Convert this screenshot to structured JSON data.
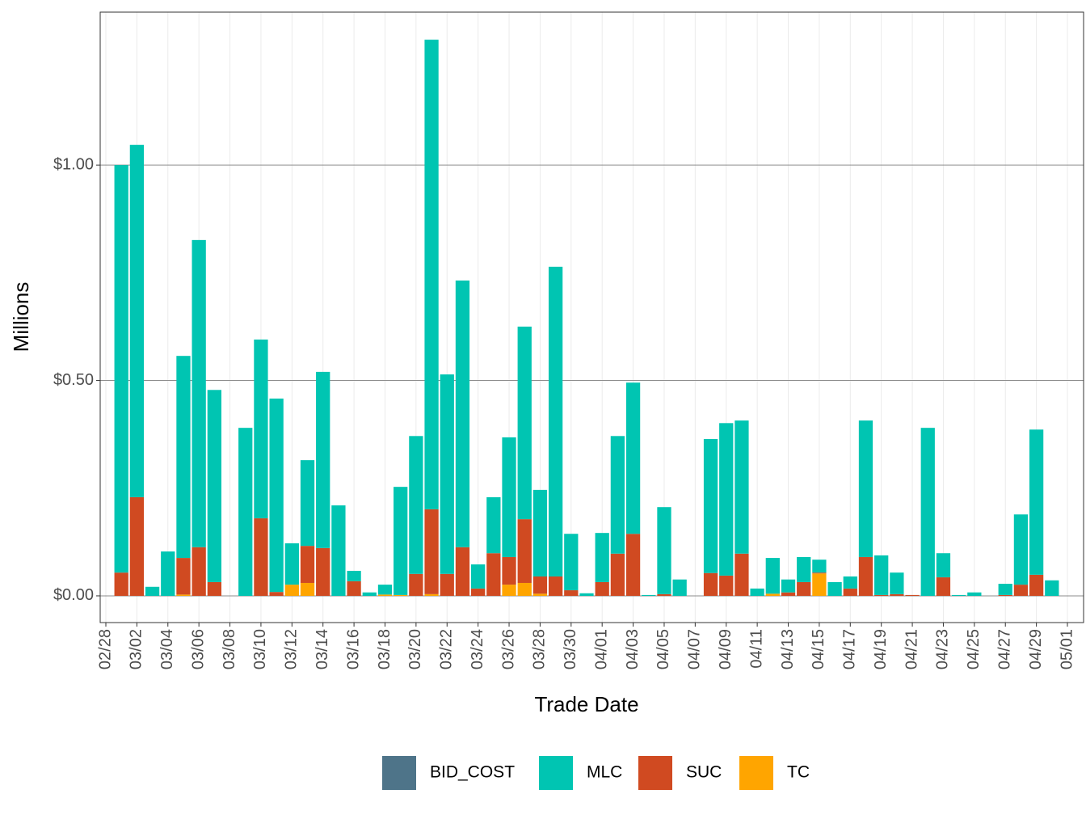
{
  "chart_data": {
    "type": "bar",
    "stacked": true,
    "x_label": "Trade Date",
    "y_label": "Millions",
    "x": [
      "03/01",
      "03/02",
      "03/03",
      "03/04",
      "03/05",
      "03/06",
      "03/07",
      "03/08",
      "03/09",
      "03/10",
      "03/11",
      "03/12",
      "03/13",
      "03/14",
      "03/15",
      "03/16",
      "03/17",
      "03/18",
      "03/19",
      "03/20",
      "03/21",
      "03/22",
      "03/23",
      "03/24",
      "03/25",
      "03/26",
      "03/27",
      "03/28",
      "03/29",
      "03/30",
      "03/31",
      "04/01",
      "04/02",
      "04/03",
      "04/04",
      "04/05",
      "04/06",
      "04/07",
      "04/08",
      "04/09",
      "04/10",
      "04/11",
      "04/12",
      "04/13",
      "04/14",
      "04/15",
      "04/16",
      "04/17",
      "04/18",
      "04/19",
      "04/20",
      "04/21",
      "04/22",
      "04/23",
      "04/24",
      "04/25",
      "04/26",
      "04/27",
      "04/28",
      "04/29",
      "04/30"
    ],
    "series": [
      {
        "name": "BID_COST",
        "color": "#4e7489",
        "values": [
          0,
          0,
          0,
          0,
          0,
          0,
          0,
          0,
          0,
          0,
          0,
          0,
          0,
          0,
          0,
          0,
          0,
          0,
          0,
          0,
          0,
          0,
          0,
          0,
          0,
          0,
          0,
          0,
          0,
          0,
          0,
          0,
          0,
          0,
          0,
          0,
          0,
          0,
          0,
          0,
          0,
          0,
          0,
          0,
          0,
          0,
          0,
          0,
          0,
          0,
          0,
          0,
          0,
          0,
          0,
          0,
          0,
          0,
          0,
          0,
          0
        ]
      },
      {
        "name": "MLC",
        "color": "#00c5b2",
        "values": [
          0.946,
          0.818,
          0.021,
          0.103,
          0.469,
          0.713,
          0.446,
          0,
          0.39,
          0.415,
          0.449,
          0.096,
          0.199,
          0.409,
          0.21,
          0.024,
          0.008,
          0.023,
          0.251,
          0.32,
          1.09,
          0.463,
          0.619,
          0.056,
          0.13,
          0.278,
          0.447,
          0.201,
          0.719,
          0.131,
          0.006,
          0.114,
          0.273,
          0.351,
          0.002,
          0.202,
          0.038,
          0,
          0.311,
          0.354,
          0.309,
          0.017,
          0.083,
          0.03,
          0.058,
          0.03,
          0.032,
          0.028,
          0.317,
          0.092,
          0.05,
          0,
          0.39,
          0.056,
          0.002,
          0.008,
          0,
          0.026,
          0.163,
          0.337,
          0.036
        ]
      },
      {
        "name": "SUC",
        "color": "#d04a21",
        "values": [
          0.054,
          0.229,
          0,
          0,
          0.085,
          0.113,
          0.032,
          0,
          0,
          0.18,
          0.009,
          0,
          0.086,
          0.111,
          0,
          0.034,
          0,
          0,
          0,
          0.051,
          0.197,
          0.051,
          0.113,
          0.017,
          0.099,
          0.064,
          0.148,
          0.04,
          0.045,
          0.013,
          0,
          0.032,
          0.098,
          0.144,
          0,
          0.004,
          0,
          0,
          0.053,
          0.047,
          0.098,
          0,
          0,
          0.008,
          0.032,
          0.002,
          0,
          0.017,
          0.09,
          0.002,
          0.004,
          0.002,
          0,
          0.043,
          0,
          0,
          0,
          0.002,
          0.026,
          0.049,
          0
        ]
      },
      {
        "name": "TC",
        "color": "#ffa500",
        "values": [
          0,
          0,
          0,
          0,
          0.003,
          0,
          0,
          0,
          0,
          0,
          0,
          0.026,
          0.03,
          0,
          0,
          0,
          0,
          0.003,
          0.002,
          0,
          0.004,
          0,
          0,
          0,
          0,
          0.026,
          0.03,
          0.005,
          0,
          0,
          0,
          0,
          0,
          0,
          0,
          0,
          0,
          0,
          0,
          0,
          0,
          0,
          0.005,
          0,
          0,
          0.052,
          0,
          0,
          0,
          0,
          0,
          0,
          0,
          0,
          0,
          0,
          0,
          0,
          0,
          0,
          0
        ]
      }
    ],
    "stack_order": [
      "TC",
      "SUC",
      "MLC",
      "BID_COST"
    ],
    "xlim": [
      "02/28",
      "05/01"
    ],
    "xticks": [
      "02/28",
      "03/02",
      "03/04",
      "03/06",
      "03/08",
      "03/10",
      "03/12",
      "03/14",
      "03/16",
      "03/18",
      "03/20",
      "03/22",
      "03/24",
      "03/26",
      "03/28",
      "03/30",
      "04/01",
      "04/03",
      "04/05",
      "04/07",
      "04/09",
      "04/11",
      "04/13",
      "04/15",
      "04/17",
      "04/19",
      "04/21",
      "04/23",
      "04/25",
      "04/27",
      "04/29",
      "05/01"
    ],
    "ylim": [
      -0.062,
      1.355
    ],
    "yticks": [
      {
        "value": 0,
        "label": "$0.00"
      },
      {
        "value": 0.5,
        "label": "$0.50"
      },
      {
        "value": 1,
        "label": "$1.00"
      }
    ],
    "grid": true,
    "legend": "bottom"
  }
}
